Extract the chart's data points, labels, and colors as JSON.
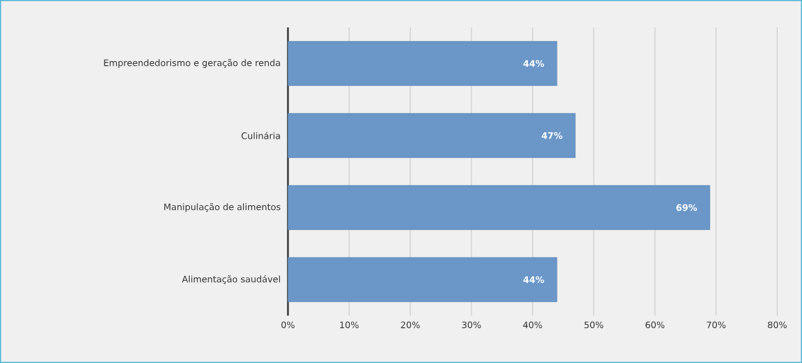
{
  "chart_data": {
    "type": "bar",
    "orientation": "horizontal",
    "categories": [
      "Empreendedorismo e geração de renda",
      "Culinária",
      "Manipulação de alimentos",
      "Alimentação saudável"
    ],
    "values": [
      44,
      47,
      69,
      44
    ],
    "value_labels": [
      "44%",
      "47%",
      "69%",
      "44%"
    ],
    "color": "#6a96c8",
    "xlim": [
      0,
      80
    ],
    "xticks": [
      {
        "value": 0,
        "label": "0%"
      },
      {
        "value": 10,
        "label": "10%"
      },
      {
        "value": 20,
        "label": "20%"
      },
      {
        "value": 30,
        "label": "30%"
      },
      {
        "value": 40,
        "label": "40%"
      },
      {
        "value": 50,
        "label": "50%"
      },
      {
        "value": 60,
        "label": "60%"
      },
      {
        "value": 70,
        "label": "70%"
      },
      {
        "value": 80,
        "label": "80%"
      }
    ],
    "grid": "x"
  }
}
